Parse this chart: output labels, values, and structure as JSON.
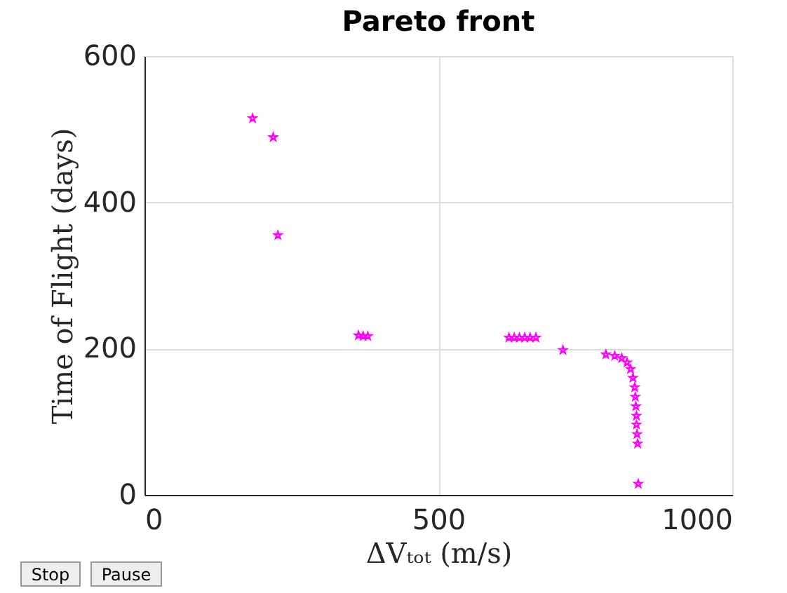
{
  "chart_data": {
    "type": "scatter",
    "title": "Pareto front",
    "xlabel": "ΔVₜₒₜ (m/s)",
    "ylabel": "Time of Flight (days)",
    "xlim": [
      0,
      1000
    ],
    "xticks": [
      0,
      500,
      {
        "value": 1000,
        "label": "1000"
      }
    ],
    "ylim": [
      0,
      600
    ],
    "yticks": [
      0,
      200,
      400,
      600
    ],
    "grid": true,
    "marker": "star",
    "annotations": [
      "Stop",
      "Pause"
    ],
    "series": [
      {
        "color": "#ff00ff",
        "x": [
          184,
          219,
          227,
          364,
          372,
          380,
          620,
          629,
          638,
          647,
          656,
          666,
          712,
          785,
          800,
          812,
          821,
          827,
          831,
          834,
          835,
          836,
          837,
          837,
          838,
          839,
          840
        ],
        "values": [
          515,
          489,
          355,
          218,
          217,
          217,
          215,
          215,
          215,
          215,
          215,
          215,
          198,
          192,
          190,
          187,
          181,
          172,
          160,
          147,
          134,
          121,
          108,
          96,
          83,
          70,
          15
        ]
      }
    ]
  }
}
